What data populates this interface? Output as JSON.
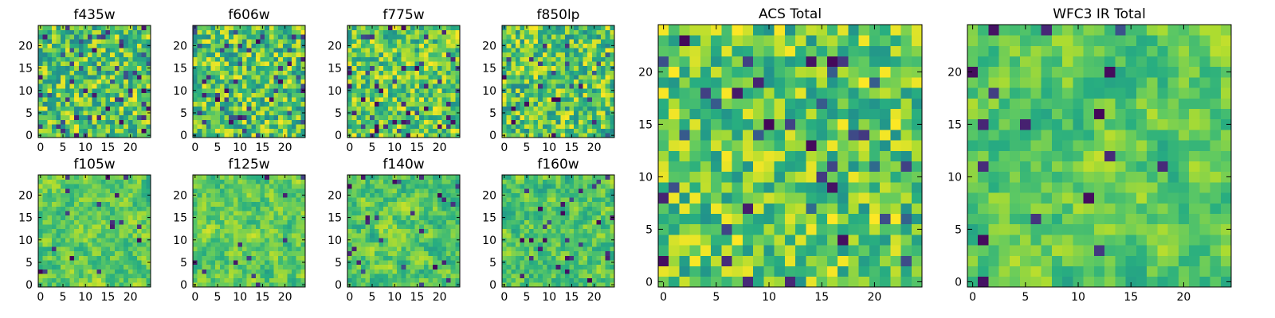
{
  "figure": {
    "background": "#ffffff"
  },
  "colormap": {
    "name": "viridis",
    "stops": [
      "#440154",
      "#472d7b",
      "#3b528b",
      "#2c728e",
      "#21918c",
      "#28ae80",
      "#5ec962",
      "#addc30",
      "#fde725"
    ]
  },
  "chart_data": [
    {
      "type": "heatmap",
      "title": "f435w",
      "rows": 25,
      "cols": 25,
      "xlim": [
        0,
        24
      ],
      "ylim": [
        0,
        24
      ],
      "xticks": [
        "0",
        "5",
        "10",
        "15",
        "20"
      ],
      "yticks": [
        "0",
        "5",
        "10",
        "15",
        "20"
      ],
      "seed": 11,
      "pattern": "noise",
      "low_fraction": 0.08,
      "low_range": [
        0.0,
        0.3
      ],
      "high_range": [
        0.45,
        1.0
      ]
    },
    {
      "type": "heatmap",
      "title": "f606w",
      "rows": 25,
      "cols": 25,
      "xlim": [
        0,
        24
      ],
      "ylim": [
        0,
        24
      ],
      "xticks": [
        "0",
        "5",
        "10",
        "15",
        "20"
      ],
      "yticks": [
        "0",
        "5",
        "10",
        "15",
        "20"
      ],
      "seed": 23,
      "pattern": "noise",
      "low_fraction": 0.08,
      "low_range": [
        0.0,
        0.3
      ],
      "high_range": [
        0.45,
        1.0
      ]
    },
    {
      "type": "heatmap",
      "title": "f775w",
      "rows": 25,
      "cols": 25,
      "xlim": [
        0,
        24
      ],
      "ylim": [
        0,
        24
      ],
      "xticks": [
        "0",
        "5",
        "10",
        "15",
        "20"
      ],
      "yticks": [
        "0",
        "5",
        "10",
        "15",
        "20"
      ],
      "seed": 37,
      "pattern": "noise",
      "low_fraction": 0.07,
      "low_range": [
        0.0,
        0.3
      ],
      "high_range": [
        0.5,
        1.0
      ]
    },
    {
      "type": "heatmap",
      "title": "f850lp",
      "rows": 25,
      "cols": 25,
      "xlim": [
        0,
        24
      ],
      "ylim": [
        0,
        24
      ],
      "xticks": [
        "0",
        "5",
        "10",
        "15",
        "20"
      ],
      "yticks": [
        "0",
        "5",
        "10",
        "15",
        "20"
      ],
      "seed": 41,
      "pattern": "noise",
      "low_fraction": 0.06,
      "low_range": [
        0.0,
        0.3
      ],
      "high_range": [
        0.45,
        1.0
      ]
    },
    {
      "type": "heatmap",
      "title": "f105w",
      "rows": 25,
      "cols": 25,
      "xlim": [
        0,
        24
      ],
      "ylim": [
        0,
        24
      ],
      "xticks": [
        "0",
        "5",
        "10",
        "15",
        "20"
      ],
      "yticks": [
        "0",
        "5",
        "10",
        "15",
        "20"
      ],
      "seed": 53,
      "pattern": "smooth",
      "low_fraction": 0.03,
      "low_range": [
        0.0,
        0.25
      ],
      "high_range": [
        0.5,
        1.0
      ]
    },
    {
      "type": "heatmap",
      "title": "f125w",
      "rows": 25,
      "cols": 25,
      "xlim": [
        0,
        24
      ],
      "ylim": [
        0,
        24
      ],
      "xticks": [
        "0",
        "5",
        "10",
        "15",
        "20"
      ],
      "yticks": [
        "0",
        "5",
        "10",
        "15",
        "20"
      ],
      "seed": 67,
      "pattern": "smooth",
      "low_fraction": 0.03,
      "low_range": [
        0.0,
        0.25
      ],
      "high_range": [
        0.5,
        1.0
      ]
    },
    {
      "type": "heatmap",
      "title": "f140w",
      "rows": 25,
      "cols": 25,
      "xlim": [
        0,
        24
      ],
      "ylim": [
        0,
        24
      ],
      "xticks": [
        "0",
        "5",
        "10",
        "15",
        "20"
      ],
      "yticks": [
        "0",
        "5",
        "10",
        "15",
        "20"
      ],
      "seed": 71,
      "pattern": "smooth",
      "low_fraction": 0.05,
      "low_range": [
        0.0,
        0.25
      ],
      "high_range": [
        0.45,
        1.0
      ]
    },
    {
      "type": "heatmap",
      "title": "f160w",
      "rows": 25,
      "cols": 25,
      "xlim": [
        0,
        24
      ],
      "ylim": [
        0,
        24
      ],
      "xticks": [
        "0",
        "5",
        "10",
        "15",
        "20"
      ],
      "yticks": [
        "0",
        "5",
        "10",
        "15",
        "20"
      ],
      "seed": 89,
      "pattern": "smooth",
      "low_fraction": 0.04,
      "low_range": [
        0.0,
        0.25
      ],
      "high_range": [
        0.45,
        1.0
      ]
    },
    {
      "type": "heatmap",
      "title": "ACS Total",
      "rows": 25,
      "cols": 25,
      "xlim": [
        0,
        24
      ],
      "ylim": [
        0,
        24
      ],
      "xticks": [
        "0",
        "5",
        "10",
        "15",
        "20"
      ],
      "yticks": [
        "0",
        "5",
        "10",
        "15",
        "20"
      ],
      "seed": 97,
      "pattern": "noise",
      "low_fraction": 0.05,
      "low_range": [
        0.0,
        0.35
      ],
      "high_range": [
        0.5,
        1.0
      ]
    },
    {
      "type": "heatmap",
      "title": "WFC3 IR Total",
      "rows": 25,
      "cols": 25,
      "xlim": [
        0,
        24
      ],
      "ylim": [
        0,
        24
      ],
      "xticks": [
        "0",
        "5",
        "10",
        "15",
        "20"
      ],
      "yticks": [
        "0",
        "5",
        "10",
        "15",
        "20"
      ],
      "seed": 101,
      "pattern": "smooth",
      "low_fraction": 0.03,
      "low_range": [
        0.0,
        0.3
      ],
      "high_range": [
        0.5,
        1.0
      ]
    }
  ]
}
